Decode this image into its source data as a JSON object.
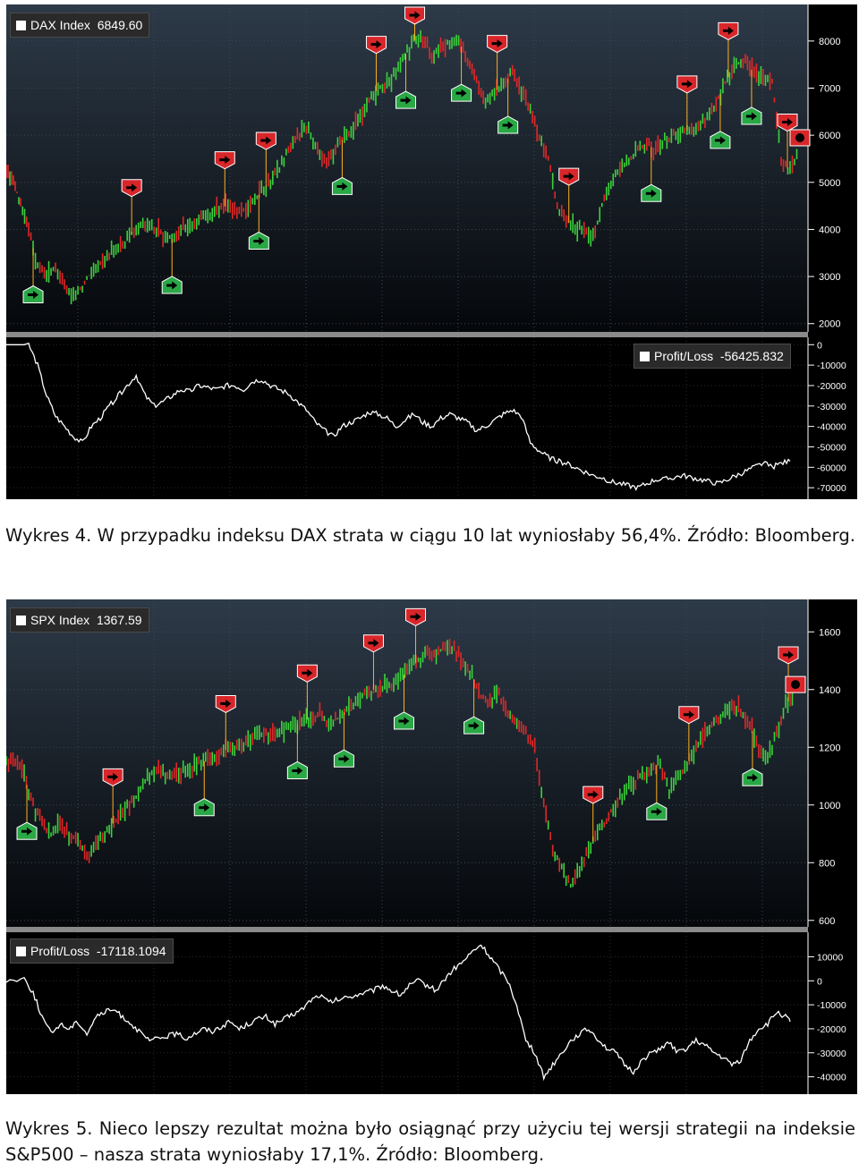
{
  "colors": {
    "up": "#3cd23c",
    "down": "#e02828",
    "pl_line": "#ffffff",
    "sell_marker": "#d8262a",
    "buy_marker": "#2aa846",
    "axis_text": "#ffffff",
    "grid": "#3a4654"
  },
  "figure1": {
    "legend_label": "DAX Index",
    "legend_value": "6849.60",
    "pl_label": "Profit/Loss",
    "pl_value": "-56425.832"
  },
  "figure2": {
    "legend_label": "SPX Index",
    "legend_value": "1367.59",
    "pl_label": "Profit/Loss",
    "pl_value": "-17118.1094"
  },
  "captions": {
    "fig1": "Wykres 4. W przypadku indeksu DAX strata w ciągu 10 lat wyniosłaby 56,4%. Źródło: Bloomberg.",
    "fig2": "Wykres 5. Nieco lepszy rezultat można było osiągnąć przy użyciu tej wersji strategii na indeksie S&P500 – nasza strata wyniosłaby 17,1%. Źródło: Bloomberg."
  },
  "chart_data": [
    {
      "type": "line",
      "panel": "price",
      "series": [
        {
          "name": "DAX Index",
          "x": [
            0,
            8,
            16,
            25,
            35,
            45,
            55,
            65,
            75,
            85,
            95,
            105,
            115,
            125,
            135,
            145,
            155,
            165,
            175,
            185,
            195,
            205,
            215,
            225,
            235,
            245,
            255,
            265,
            275,
            285,
            295,
            305,
            315,
            325,
            335,
            345,
            355,
            365,
            375,
            385,
            395,
            405,
            415,
            425,
            435,
            445,
            455,
            465,
            475,
            485,
            495,
            505,
            515,
            525,
            535,
            545,
            555,
            565,
            575,
            585,
            595,
            605,
            615,
            625,
            635,
            645,
            655,
            665,
            675,
            685,
            695,
            705,
            715,
            725,
            735,
            745,
            755,
            765,
            775,
            785,
            795,
            805,
            815,
            825,
            835,
            845,
            855,
            865,
            875,
            885
          ],
          "values": [
            5300,
            5100,
            4500,
            4000,
            3200,
            3000,
            3150,
            2800,
            2500,
            2800,
            3100,
            3300,
            3500,
            3600,
            3800,
            4000,
            4100,
            4050,
            3900,
            3800,
            4000,
            4100,
            4200,
            4300,
            4400,
            4500,
            4450,
            4400,
            4600,
            4800,
            5000,
            5300,
            5700,
            6000,
            6200,
            5800,
            5400,
            5600,
            5900,
            6100,
            6400,
            6700,
            7000,
            7100,
            7300,
            7700,
            8000,
            8100,
            7700,
            7900,
            7950,
            8000,
            7600,
            7200,
            6800,
            6900,
            7100,
            7300,
            6900,
            6500,
            6000,
            5500,
            4500,
            4200,
            4000,
            4000,
            3800,
            4500,
            5000,
            5300,
            5500,
            5700,
            5800,
            5700,
            5900,
            6000,
            6100,
            6100,
            6200,
            6400,
            6800,
            7200,
            7500,
            7600,
            7300,
            7200,
            7100,
            5500,
            5200,
            5800
          ]
        }
      ],
      "sell_signals_x": [
        456,
        140,
        244,
        290,
        413,
        548,
        628,
        760,
        806,
        872
      ],
      "buy_signals_x": [
        30,
        185,
        282,
        375,
        446,
        508,
        560,
        720,
        797,
        832
      ],
      "yticks": [
        8000,
        7000,
        6000,
        5000,
        4000,
        3000,
        2000
      ],
      "ylim": [
        1900,
        8700
      ]
    },
    {
      "type": "line",
      "panel": "profit_loss",
      "series": [
        {
          "name": "Profit/Loss",
          "x": [
            0,
            25,
            35,
            45,
            55,
            65,
            75,
            85,
            95,
            105,
            115,
            125,
            135,
            145,
            155,
            165,
            175,
            185,
            195,
            205,
            215,
            225,
            235,
            245,
            255,
            265,
            275,
            285,
            295,
            305,
            315,
            325,
            335,
            345,
            355,
            365,
            375,
            385,
            395,
            405,
            415,
            425,
            435,
            445,
            455,
            465,
            475,
            485,
            495,
            505,
            515,
            525,
            535,
            545,
            555,
            565,
            575,
            585,
            595,
            605,
            615,
            625,
            635,
            645,
            655,
            665,
            675,
            685,
            695,
            705,
            715,
            725,
            735,
            745,
            755,
            765,
            775,
            785,
            795,
            805,
            815,
            825,
            835,
            845,
            855,
            865,
            875
          ],
          "values": [
            0,
            0,
            -10000,
            -25000,
            -35000,
            -40000,
            -45000,
            -48000,
            -40000,
            -36000,
            -30000,
            -25000,
            -20000,
            -15000,
            -25000,
            -30000,
            -28000,
            -25000,
            -22000,
            -23000,
            -20000,
            -21000,
            -22000,
            -20000,
            -20000,
            -22000,
            -18000,
            -17000,
            -20000,
            -22000,
            -24000,
            -28000,
            -32000,
            -38000,
            -42000,
            -45000,
            -40000,
            -38000,
            -36000,
            -33000,
            -34000,
            -36000,
            -40000,
            -37000,
            -34000,
            -38000,
            -40000,
            -36000,
            -34000,
            -36000,
            -38000,
            -42000,
            -40000,
            -37000,
            -34000,
            -32000,
            -35000,
            -48000,
            -52000,
            -55000,
            -57000,
            -58000,
            -60000,
            -62000,
            -64000,
            -65000,
            -67000,
            -68000,
            -69000,
            -70000,
            -68000,
            -66000,
            -66000,
            -65000,
            -64000,
            -65000,
            -66000,
            -67000,
            -68000,
            -66000,
            -64000,
            -62000,
            -60000,
            -58000,
            -60000,
            -58000,
            -57000
          ]
        }
      ],
      "yticks": [
        0,
        -10000,
        -20000,
        -30000,
        -40000,
        -50000,
        -60000,
        -70000
      ],
      "ylim": [
        -73000,
        1000
      ]
    },
    {
      "type": "line",
      "panel": "price",
      "series": [
        {
          "name": "SPX Index",
          "x": [
            0,
            10,
            20,
            30,
            40,
            50,
            60,
            70,
            80,
            90,
            100,
            110,
            120,
            130,
            140,
            150,
            160,
            170,
            180,
            190,
            200,
            210,
            220,
            230,
            240,
            250,
            260,
            270,
            280,
            290,
            300,
            310,
            320,
            330,
            340,
            350,
            360,
            370,
            380,
            390,
            400,
            410,
            420,
            430,
            440,
            450,
            460,
            470,
            480,
            490,
            500,
            510,
            520,
            530,
            540,
            550,
            560,
            570,
            580,
            590,
            600,
            610,
            620,
            630,
            640,
            650,
            660,
            670,
            680,
            690,
            700,
            710,
            720,
            730,
            740,
            750,
            760,
            770,
            780,
            790,
            800,
            810,
            820,
            830,
            840,
            850,
            860,
            870,
            880
          ],
          "values": [
            1160,
            1150,
            1100,
            1000,
            950,
            890,
            940,
            900,
            880,
            820,
            860,
            900,
            940,
            980,
            1010,
            1050,
            1100,
            1120,
            1110,
            1100,
            1120,
            1140,
            1150,
            1170,
            1180,
            1200,
            1200,
            1220,
            1240,
            1250,
            1240,
            1260,
            1270,
            1290,
            1300,
            1310,
            1280,
            1300,
            1330,
            1350,
            1380,
            1400,
            1410,
            1420,
            1440,
            1470,
            1500,
            1540,
            1520,
            1560,
            1540,
            1500,
            1450,
            1380,
            1360,
            1380,
            1320,
            1290,
            1250,
            1200,
            1000,
            850,
            780,
            720,
            780,
            850,
            900,
            950,
            1000,
            1050,
            1080,
            1100,
            1120,
            1150,
            1050,
            1100,
            1140,
            1200,
            1260,
            1280,
            1320,
            1340,
            1330,
            1280,
            1200,
            1150,
            1250,
            1350,
            1380
          ]
        }
      ],
      "sell_signals_x": [
        457,
        119,
        245,
        336,
        410,
        655,
        762,
        873
      ],
      "buy_signals_x": [
        23,
        221,
        325,
        377,
        444,
        522,
        726,
        833
      ],
      "yticks": [
        1600,
        1400,
        1200,
        1000,
        800,
        600
      ],
      "ylim": [
        590,
        1700
      ]
    },
    {
      "type": "line",
      "panel": "profit_loss",
      "series": [
        {
          "name": "Profit/Loss",
          "x": [
            0,
            20,
            30,
            40,
            50,
            60,
            70,
            80,
            90,
            100,
            110,
            120,
            130,
            140,
            150,
            160,
            170,
            180,
            190,
            200,
            210,
            220,
            230,
            240,
            250,
            260,
            270,
            280,
            290,
            300,
            310,
            320,
            330,
            340,
            350,
            360,
            370,
            380,
            390,
            400,
            410,
            420,
            430,
            440,
            450,
            460,
            470,
            480,
            490,
            500,
            510,
            520,
            530,
            540,
            550,
            560,
            570,
            580,
            590,
            600,
            610,
            620,
            630,
            640,
            650,
            660,
            670,
            680,
            690,
            700,
            710,
            720,
            730,
            740,
            750,
            760,
            770,
            780,
            790,
            800,
            810,
            820,
            830,
            840,
            850,
            860,
            870,
            875
          ],
          "values": [
            0,
            1000,
            -5000,
            -15000,
            -22000,
            -18000,
            -20000,
            -17000,
            -22000,
            -15000,
            -13000,
            -12000,
            -15000,
            -18000,
            -22000,
            -25000,
            -24000,
            -23000,
            -22000,
            -24000,
            -22000,
            -20000,
            -21000,
            -19000,
            -17000,
            -20000,
            -18000,
            -16000,
            -15000,
            -18000,
            -16000,
            -14000,
            -12000,
            -8000,
            -6000,
            -9000,
            -8000,
            -7000,
            -6000,
            -5000,
            -4000,
            -2000,
            -4000,
            -6000,
            -2000,
            0,
            -2000,
            -4000,
            1000,
            5000,
            8000,
            12000,
            15000,
            10000,
            5000,
            0,
            -10000,
            -25000,
            -30000,
            -40000,
            -35000,
            -30000,
            -25000,
            -22000,
            -20000,
            -24000,
            -28000,
            -30000,
            -35000,
            -38000,
            -33000,
            -30000,
            -28000,
            -26000,
            -30000,
            -28000,
            -25000,
            -27000,
            -30000,
            -32000,
            -35000,
            -33000,
            -25000,
            -20000,
            -18000,
            -13000,
            -15000,
            -17000
          ]
        }
      ],
      "yticks": [
        10000,
        0,
        -10000,
        -20000,
        -30000,
        -40000
      ],
      "ylim": [
        -45000,
        18000
      ]
    }
  ]
}
